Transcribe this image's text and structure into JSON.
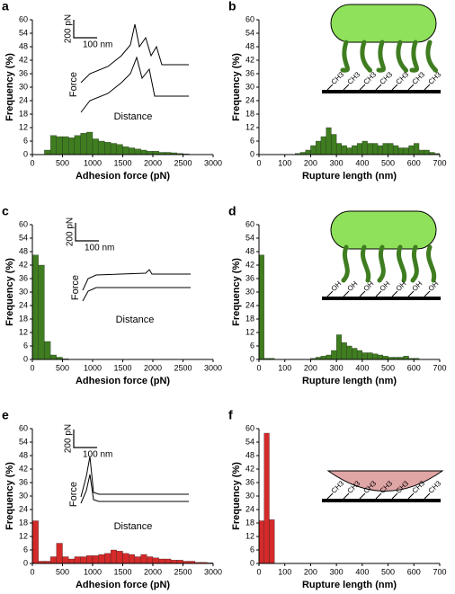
{
  "chart_data": [
    {
      "type": "histogram",
      "label": "a",
      "xlabel": "Adhesion force (pN)",
      "ylabel": "Frequency (%)",
      "color": "#3f7d20",
      "xlim": [
        0,
        3000
      ],
      "xticks": [
        0,
        500,
        1000,
        1500,
        2000,
        2500,
        3000
      ],
      "ylim": [
        0,
        60
      ],
      "yticks": [
        0,
        6,
        12,
        18,
        24,
        30,
        36,
        42,
        48,
        54,
        60
      ],
      "bins": [
        200,
        300,
        400,
        500,
        600,
        700,
        800,
        900,
        1000,
        1100,
        1200,
        1300,
        1400,
        1500,
        1600,
        1700,
        1800,
        1900,
        2000,
        2100,
        2200,
        2300,
        2400,
        2500,
        2600
      ],
      "values": [
        2,
        8.5,
        8,
        8,
        7.5,
        8.5,
        9.5,
        10,
        7,
        6,
        5.5,
        5,
        4.5,
        3.5,
        3,
        2.5,
        2,
        1.5,
        1.5,
        1,
        1,
        0.8,
        0.5,
        0.3
      ],
      "inset": {
        "scale_y": "200 pN",
        "scale_x": "100 nm",
        "y_label": "Force",
        "x_label": "Distance"
      }
    },
    {
      "type": "histogram",
      "label": "b",
      "xlabel": "Rupture length (nm)",
      "ylabel": "Frequency (%)",
      "color": "#3f7d20",
      "xlim": [
        0,
        700
      ],
      "xticks": [
        0,
        100,
        200,
        300,
        400,
        500,
        600,
        700
      ],
      "ylim": [
        0,
        60
      ],
      "yticks": [
        0,
        6,
        12,
        18,
        24,
        30,
        36,
        42,
        48,
        54,
        60
      ],
      "bins": [
        140,
        160,
        180,
        200,
        220,
        240,
        260,
        280,
        300,
        320,
        340,
        360,
        380,
        400,
        420,
        440,
        460,
        480,
        500,
        520,
        540,
        560,
        580,
        600,
        620,
        640,
        660,
        680,
        700
      ],
      "values": [
        0.5,
        1,
        2,
        4,
        6,
        8,
        12,
        9,
        5,
        4,
        3,
        4,
        5,
        6,
        5,
        5,
        4,
        5,
        5,
        4,
        3,
        3,
        4,
        5,
        2,
        2,
        1,
        0.5
      ],
      "surface_labels": [
        "CH3",
        "CH3",
        "CH3",
        "CH3",
        "CH3",
        "CH3",
        "CH3"
      ]
    },
    {
      "type": "histogram",
      "label": "c",
      "xlabel": "Adhesion force (pN)",
      "ylabel": "Frequency (%)",
      "color": "#3f7d20",
      "xlim": [
        0,
        3000
      ],
      "xticks": [
        0,
        500,
        1000,
        1500,
        2000,
        2500,
        3000
      ],
      "ylim": [
        0,
        60
      ],
      "yticks": [
        0,
        6,
        12,
        18,
        24,
        30,
        36,
        42,
        48,
        54,
        60
      ],
      "bins": [
        0,
        100,
        200,
        300,
        400,
        500,
        600
      ],
      "values": [
        46.5,
        42,
        8,
        2,
        1,
        0.3
      ],
      "inset": {
        "scale_y": "200 pN",
        "scale_x": "100 nm",
        "y_label": "Force",
        "x_label": "Distance"
      }
    },
    {
      "type": "histogram",
      "label": "d",
      "xlabel": "Rupture length (nm)",
      "ylabel": "Frequency (%)",
      "color": "#3f7d20",
      "xlim": [
        0,
        700
      ],
      "xticks": [
        0,
        100,
        200,
        300,
        400,
        500,
        600,
        700
      ],
      "ylim": [
        0,
        60
      ],
      "yticks": [
        0,
        6,
        12,
        18,
        24,
        30,
        36,
        42,
        48,
        54,
        60
      ],
      "bins": [
        0,
        20,
        40,
        60,
        80,
        100,
        120,
        140,
        160,
        180,
        200,
        220,
        240,
        260,
        280,
        300,
        320,
        340,
        360,
        380,
        400,
        420,
        440,
        460,
        480,
        500,
        520,
        540,
        560,
        580,
        600,
        620
      ],
      "values": [
        46.5,
        0.5,
        0.5,
        0,
        0,
        0,
        0,
        0,
        0,
        0,
        0.5,
        1,
        1.5,
        2,
        4,
        11,
        7.5,
        6,
        5,
        4,
        3,
        3,
        2.5,
        2,
        1.5,
        1,
        1,
        1,
        1.5,
        0.5,
        0.5
      ],
      "surface_labels": [
        "OH",
        "OH",
        "OH",
        "OH",
        "OH",
        "OH",
        "OH"
      ]
    },
    {
      "type": "histogram",
      "label": "e",
      "xlabel": "Adhesion force (pN)",
      "ylabel": "Frequency (%)",
      "color": "#d42a2a",
      "xlim": [
        0,
        3000
      ],
      "xticks": [
        0,
        500,
        1000,
        1500,
        2000,
        2500,
        3000
      ],
      "ylim": [
        0,
        60
      ],
      "yticks": [
        0,
        6,
        12,
        18,
        24,
        30,
        36,
        42,
        48,
        54,
        60
      ],
      "bins": [
        0,
        100,
        200,
        300,
        400,
        500,
        600,
        700,
        800,
        900,
        1000,
        1100,
        1200,
        1300,
        1400,
        1500,
        1600,
        1700,
        1800,
        1900,
        2000,
        2100,
        2200,
        2300,
        2400,
        2500,
        2600,
        2700,
        2800,
        2900,
        3000
      ],
      "values": [
        19,
        1,
        1,
        3,
        9,
        3,
        2,
        3,
        3,
        3.5,
        3.5,
        4,
        4.5,
        6,
        5.5,
        4.5,
        4,
        3,
        4,
        3,
        2.5,
        2,
        2,
        1.5,
        1.5,
        1,
        1,
        0.5,
        0.5,
        0.3
      ],
      "inset": {
        "scale_y": "200 pN",
        "scale_x": "100 nm",
        "y_label": "Force",
        "x_label": "Distance"
      }
    },
    {
      "type": "histogram",
      "label": "f",
      "xlabel": "Rupture length (nm)",
      "ylabel": "Frequency (%)",
      "color": "#d42a2a",
      "xlim": [
        0,
        700
      ],
      "xticks": [
        0,
        100,
        200,
        300,
        400,
        500,
        600,
        700
      ],
      "ylim": [
        0,
        60
      ],
      "yticks": [
        0,
        6,
        12,
        18,
        24,
        30,
        36,
        42,
        48,
        54,
        60
      ],
      "bins": [
        0,
        20,
        40,
        60
      ],
      "values": [
        19,
        58,
        19.5
      ],
      "surface_labels": [
        "CH3",
        "CH3",
        "CH3",
        "CH3",
        "CH3",
        "CH3",
        "CH3"
      ]
    }
  ]
}
